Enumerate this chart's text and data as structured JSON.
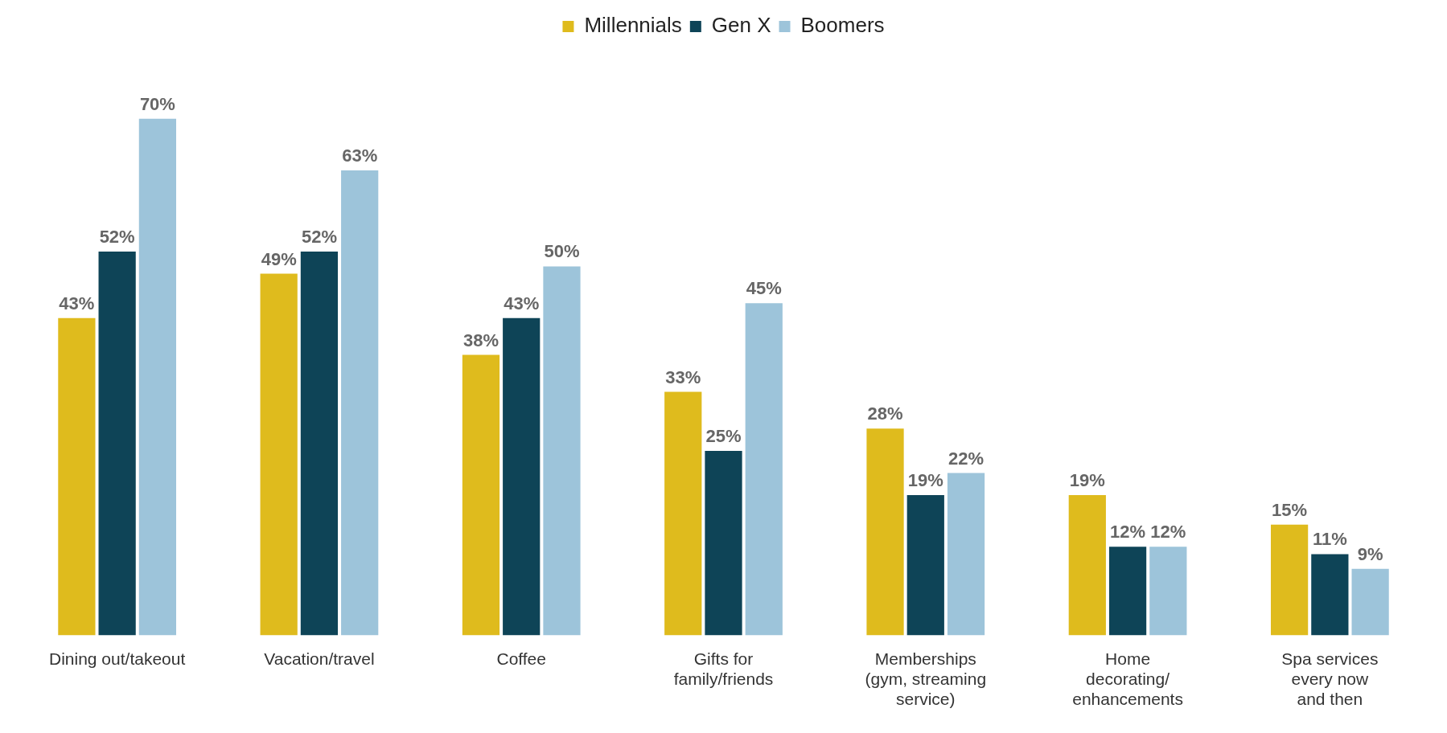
{
  "chart_data": {
    "type": "bar",
    "categories": [
      "Dining out/takeout",
      "Vacation/travel",
      "Coffee",
      "Gifts for\nfamily/friends",
      "Memberships\n(gym, streaming\nservice)",
      "Home\ndecorating/\nenhancements",
      "Spa services\nevery now\nand then"
    ],
    "series": [
      {
        "name": "Millennials",
        "color": "#dfbb1d",
        "values": [
          43,
          49,
          38,
          33,
          28,
          19,
          15
        ],
        "value_labels": [
          "43%",
          "49%",
          "38%",
          "33%",
          "28%",
          "19%",
          "15%"
        ]
      },
      {
        "name": "Gen X",
        "color": "#0e4457",
        "values": [
          52,
          52,
          43,
          25,
          19,
          12,
          11
        ],
        "value_labels": [
          "52%",
          "52%",
          "43%",
          "25%",
          "19%",
          "12%",
          "11%"
        ]
      },
      {
        "name": "Boomers",
        "color": "#9dc4da",
        "values": [
          70,
          63,
          50,
          45,
          22,
          12,
          9
        ],
        "value_labels": [
          "70%",
          "63%",
          "50%",
          "45%",
          "22%",
          "12%",
          "9%"
        ]
      }
    ],
    "legend": "top",
    "grid": false
  }
}
